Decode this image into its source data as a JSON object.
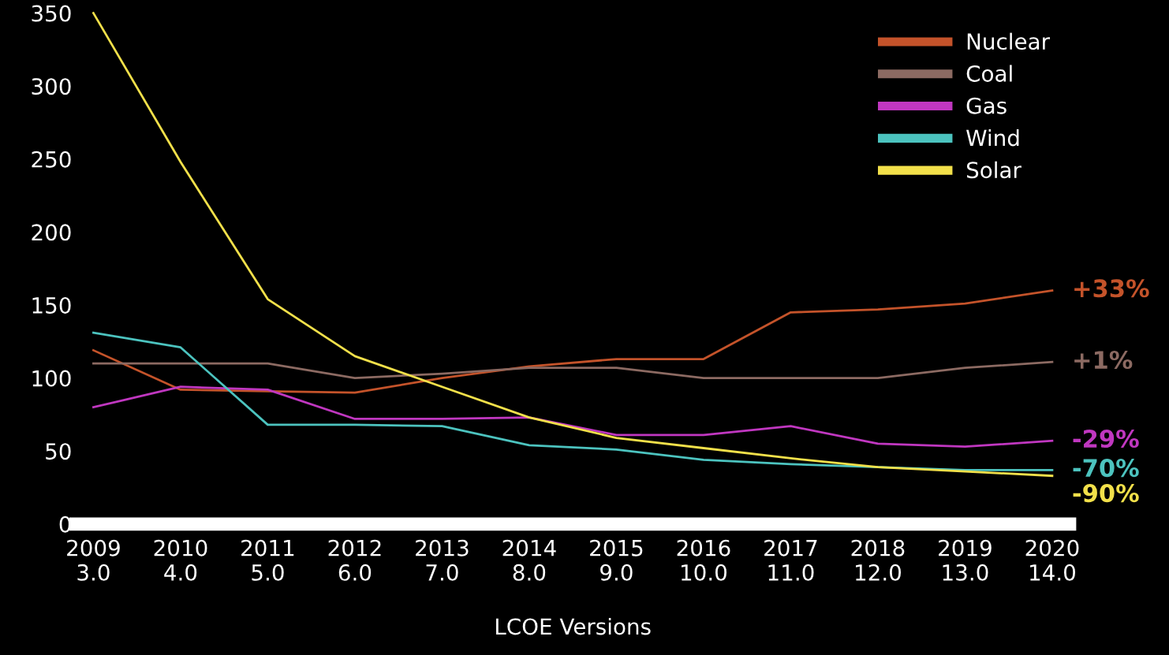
{
  "chart_data": {
    "type": "line",
    "categories": [
      "2009\n3.0",
      "2010\n4.0",
      "2011\n5.0",
      "2012\n6.0",
      "2013\n7.0",
      "2014\n8.0",
      "2015\n9.0",
      "2016\n10.0",
      "2017\n11.0",
      "2018\n12.0",
      "2019\n13.0",
      "2020\n14.0"
    ],
    "xlabel": "LCOE Versions",
    "ylim": [
      0,
      350
    ],
    "yticks": [
      0,
      50,
      100,
      150,
      200,
      250,
      300,
      350
    ],
    "grid": false,
    "legend": "top right",
    "marker": "none",
    "line_style": "solid",
    "series": [
      {
        "name": "Nuclear",
        "color": "#c4532a",
        "values": [
          119,
          92,
          91,
          90,
          100,
          108,
          113,
          113,
          145,
          147,
          151,
          160
        ]
      },
      {
        "name": "Coal",
        "color": "#8c6a62",
        "values": [
          110,
          110,
          110,
          100,
          103,
          107,
          107,
          100,
          100,
          100,
          107,
          111
        ]
      },
      {
        "name": "Gas",
        "color": "#c037c0",
        "values": [
          80,
          94,
          92,
          72,
          72,
          73,
          61,
          61,
          67,
          55,
          53,
          57
        ]
      },
      {
        "name": "Wind",
        "color": "#4cc3bf",
        "values": [
          131,
          121,
          68,
          68,
          67,
          54,
          51,
          44,
          41,
          39,
          37,
          37
        ]
      },
      {
        "name": "Solar",
        "color": "#f2e04a",
        "values": [
          350,
          248,
          154,
          115,
          94,
          73,
          59,
          52,
          45,
          39,
          36,
          33
        ]
      }
    ],
    "annotations": [
      "+33%",
      "+1%",
      "-29%",
      "-70%",
      "-90%"
    ]
  }
}
